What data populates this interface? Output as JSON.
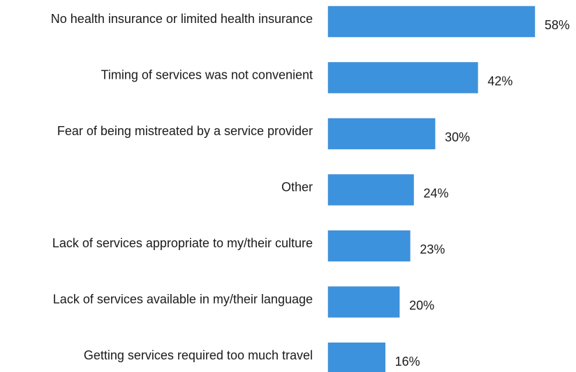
{
  "chart_data": {
    "type": "bar",
    "orientation": "horizontal",
    "categories": [
      "No health insurance or limited health insurance",
      "Timing of services was not convenient",
      "Fear of being mistreated by a service provider",
      "Other",
      "Lack of services appropriate to my/their culture",
      "Lack of services available in my/their language",
      "Getting services required too much travel"
    ],
    "values": [
      58,
      42,
      30,
      24,
      23,
      20,
      16
    ],
    "value_labels": [
      "58%",
      "42%",
      "30%",
      "24%",
      "23%",
      "20%",
      "16%"
    ],
    "unit": "%",
    "title": "",
    "xlabel": "",
    "ylabel": "",
    "xlim": [
      0,
      58
    ],
    "grid": false,
    "legend": "none",
    "bar_color": "#3d92dd"
  }
}
